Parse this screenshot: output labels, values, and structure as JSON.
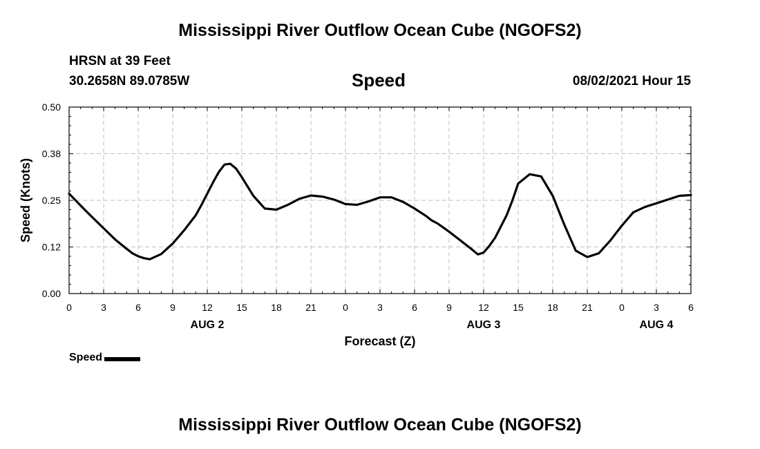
{
  "header": {
    "title_top": "Mississippi River Outflow Ocean Cube (NGOFS2)",
    "station": "HRSN at 39 Feet",
    "coords": "30.2658N  89.0785W",
    "chart_title": "Speed",
    "datetime": "08/02/2021 Hour 15",
    "title_bottom": "Mississippi River Outflow Ocean Cube (NGOFS2)"
  },
  "legend": {
    "label": "Speed",
    "color": "#000000"
  },
  "chart_data": {
    "type": "line",
    "title": "Speed",
    "xlabel": "Forecast (Z)",
    "ylabel": "Speed (Knots)",
    "xlim": [
      0,
      54
    ],
    "ylim": [
      0,
      0.5
    ],
    "grid": true,
    "legend_position": "bottom-left",
    "x_ticks": [
      0,
      3,
      6,
      9,
      12,
      15,
      18,
      21,
      24,
      27,
      30,
      33,
      36,
      39,
      42,
      45,
      48,
      51,
      54
    ],
    "x_tick_labels": [
      "0",
      "3",
      "6",
      "9",
      "12",
      "15",
      "18",
      "21",
      "0",
      "3",
      "6",
      "9",
      "12",
      "15",
      "18",
      "21",
      "0",
      "3",
      "6"
    ],
    "y_ticks": [
      0,
      0.125,
      0.25,
      0.375,
      0.5
    ],
    "y_tick_labels": [
      "0.00",
      "0.12",
      "0.25",
      "0.38",
      "0.50"
    ],
    "day_labels": [
      {
        "x": 12,
        "label": "AUG 2"
      },
      {
        "x": 36,
        "label": "AUG 3"
      },
      {
        "x": 51,
        "label": "AUG 4"
      }
    ],
    "series": [
      {
        "name": "Speed",
        "color": "#000000",
        "x": [
          0,
          1,
          2,
          3,
          4,
          5,
          5.5,
          6,
          6.5,
          7,
          8,
          9,
          10,
          11,
          11.5,
          12,
          12.5,
          13,
          13.5,
          14,
          14.5,
          15,
          16,
          17,
          18,
          19,
          20,
          21,
          22,
          23,
          24,
          25,
          26,
          27,
          28,
          29,
          30,
          30.5,
          31,
          31.5,
          32,
          33,
          34,
          35,
          35.5,
          36,
          36.5,
          37,
          37.5,
          38,
          38.5,
          39,
          40,
          41,
          42,
          43,
          44,
          45,
          46,
          47,
          48,
          49,
          50,
          51,
          52,
          53,
          54
        ],
        "values": [
          0.268,
          0.236,
          0.205,
          0.175,
          0.145,
          0.12,
          0.108,
          0.1,
          0.095,
          0.092,
          0.106,
          0.134,
          0.17,
          0.21,
          0.238,
          0.268,
          0.298,
          0.326,
          0.346,
          0.348,
          0.335,
          0.312,
          0.262,
          0.228,
          0.225,
          0.238,
          0.254,
          0.263,
          0.26,
          0.252,
          0.24,
          0.238,
          0.247,
          0.258,
          0.258,
          0.246,
          0.228,
          0.218,
          0.208,
          0.196,
          0.188,
          0.166,
          0.142,
          0.118,
          0.105,
          0.11,
          0.128,
          0.15,
          0.18,
          0.21,
          0.25,
          0.295,
          0.32,
          0.314,
          0.262,
          0.185,
          0.115,
          0.098,
          0.108,
          0.142,
          0.182,
          0.218,
          0.232,
          0.242,
          0.252,
          0.262,
          0.264
        ]
      }
    ]
  }
}
